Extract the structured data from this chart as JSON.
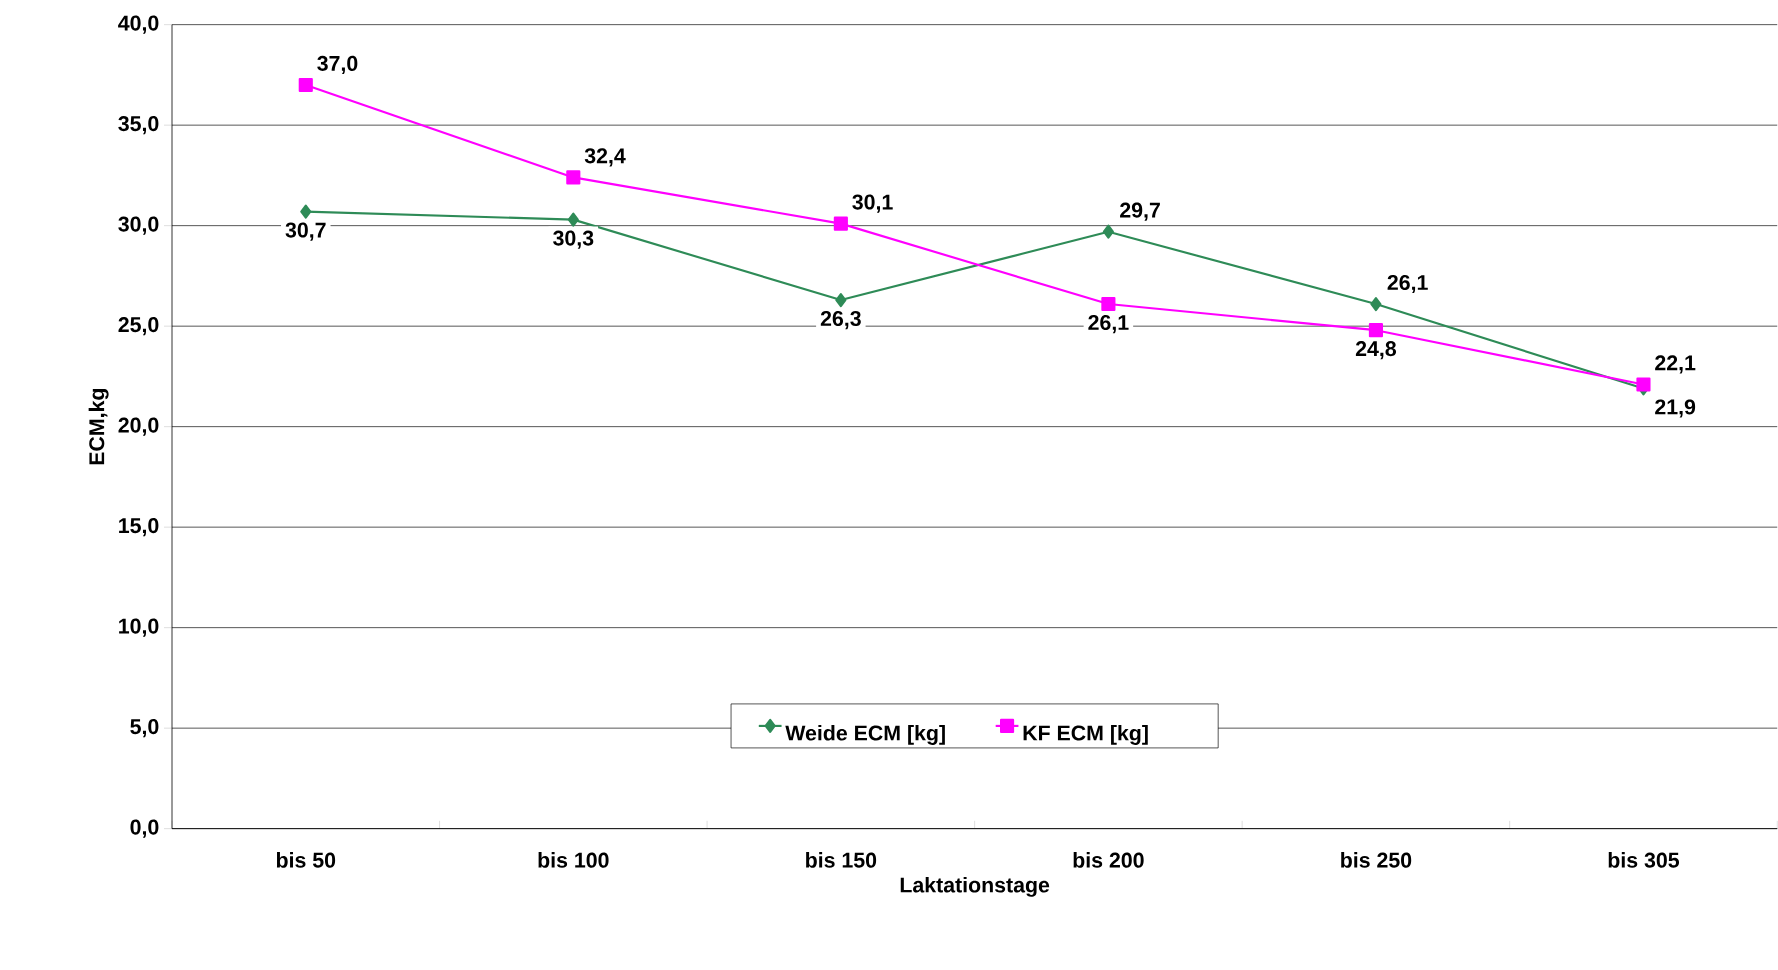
{
  "chart_data": {
    "type": "line",
    "xlabel": "Laktationstage",
    "ylabel": "ECM,kg",
    "categories": [
      "bis 50",
      "bis 100",
      "bis 150",
      "bis 200",
      "bis 250",
      "bis 305"
    ],
    "series": [
      {
        "name": "Weide ECM [kg]",
        "color": "#2e8b57",
        "marker": "diamond",
        "values": [
          30.7,
          30.3,
          26.3,
          29.7,
          26.1,
          21.9
        ],
        "value_labels": [
          "30,7",
          "30,3",
          "26,3",
          "29,7",
          "26,1",
          "21,9"
        ]
      },
      {
        "name": "KF ECM [kg]",
        "color": "#ff00ff",
        "marker": "square",
        "values": [
          37.0,
          32.4,
          30.1,
          26.1,
          24.8,
          22.1
        ],
        "value_labels": [
          "37,0",
          "32,4",
          "30,1",
          "26,1",
          "24,8",
          "22,1"
        ]
      }
    ],
    "ylim": [
      0,
      40
    ],
    "yticks": [
      {
        "value": 0,
        "label": "0,0"
      },
      {
        "value": 5,
        "label": "5,0"
      },
      {
        "value": 10,
        "label": "10,0"
      },
      {
        "value": 15,
        "label": "15,0"
      },
      {
        "value": 20,
        "label": "20,0"
      },
      {
        "value": 25,
        "label": "25,0"
      },
      {
        "value": 30,
        "label": "30,0"
      },
      {
        "value": 35,
        "label": "35,0"
      },
      {
        "value": 40,
        "label": "40,0"
      }
    ],
    "grid": "y",
    "legend": "bottom"
  }
}
